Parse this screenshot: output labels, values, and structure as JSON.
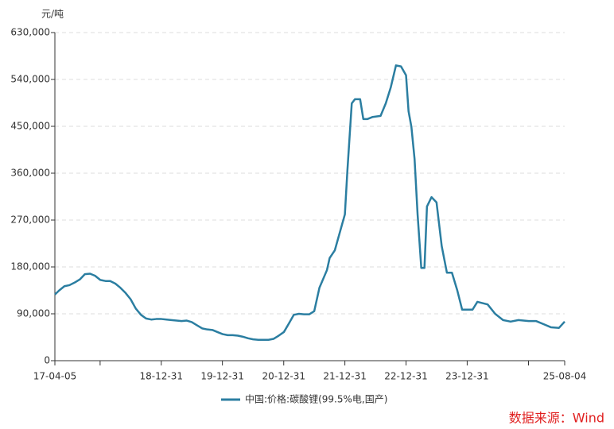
{
  "chart_data": {
    "type": "line",
    "y_unit": "元/吨",
    "source": "数据来源：Wind",
    "x": [
      "17-04-05",
      "17-05-01",
      "17-06-01",
      "17-07-01",
      "17-08-01",
      "17-09-01",
      "17-10-01",
      "17-11-01",
      "17-12-01",
      "18-01-01",
      "18-02-01",
      "18-03-01",
      "18-04-01",
      "18-05-01",
      "18-06-01",
      "18-07-01",
      "18-08-01",
      "18-09-01",
      "18-10-01",
      "18-11-01",
      "18-12-01",
      "19-01-01",
      "19-02-01",
      "19-03-01",
      "19-04-01",
      "19-05-01",
      "19-06-01",
      "19-07-01",
      "19-08-01",
      "19-09-01",
      "19-10-01",
      "19-11-01",
      "19-12-01",
      "20-01-01",
      "20-02-01",
      "20-03-01",
      "20-04-01",
      "20-05-01",
      "20-06-01",
      "20-07-01",
      "20-08-01",
      "20-09-01",
      "20-10-01",
      "20-11-01",
      "20-12-01",
      "21-01-01",
      "21-02-01",
      "21-03-01",
      "21-04-01",
      "21-05-01",
      "21-06-01",
      "21-07-01",
      "21-08-01",
      "21-09-15",
      "21-10-01",
      "21-11-01",
      "21-12-31",
      "22-01-15",
      "22-02-10",
      "22-03-01",
      "22-04-01",
      "22-04-20",
      "22-05-15",
      "22-06-15",
      "22-08-01",
      "22-09-01",
      "22-10-01",
      "22-11-01",
      "22-12-01",
      "22-12-31",
      "23-01-15",
      "23-02-01",
      "23-02-20",
      "23-03-10",
      "23-04-01",
      "23-04-20",
      "23-05-05",
      "23-06-01",
      "23-07-01",
      "23-08-01",
      "23-09-01",
      "23-10-01",
      "23-11-01",
      "23-12-01",
      "24-02-01",
      "24-03-01",
      "24-05-01",
      "24-06-15",
      "24-08-01",
      "24-09-15",
      "24-11-01",
      "25-01-01",
      "25-02-15",
      "25-04-01",
      "25-05-15",
      "25-07-01",
      "25-08-04"
    ],
    "series": [
      {
        "name": "中国:价格:碳酸锂(99.5%电,国产)",
        "color": "#2b7ea1",
        "values": [
          127000,
          135000,
          143000,
          145000,
          150000,
          156000,
          166000,
          167000,
          163000,
          155000,
          153000,
          153000,
          148000,
          140000,
          130000,
          118000,
          100000,
          88000,
          81000,
          79000,
          80000,
          80000,
          79000,
          78000,
          77000,
          76000,
          77000,
          74000,
          68000,
          62000,
          60000,
          59000,
          55000,
          51000,
          49000,
          49000,
          48000,
          46000,
          43000,
          41000,
          40000,
          40000,
          40000,
          42000,
          48000,
          55000,
          72000,
          88000,
          90000,
          89000,
          89000,
          95000,
          140000,
          174000,
          197000,
          212000,
          281000,
          365000,
          494000,
          502000,
          502000,
          464000,
          464000,
          468000,
          470000,
          494000,
          525000,
          567000,
          565000,
          548000,
          479000,
          449000,
          387000,
          281000,
          178000,
          178000,
          296000,
          314000,
          304000,
          220000,
          169000,
          169000,
          136000,
          98000,
          98000,
          113000,
          108000,
          90000,
          78000,
          75000,
          78000,
          76000,
          76000,
          70000,
          64000,
          63000,
          75000
        ]
      }
    ],
    "xlim": [
      "17-04-05",
      "25-08-04"
    ],
    "xticks": [
      {
        "value": "17-04-05",
        "label": "17-04-05"
      },
      {
        "value": "17-12-31",
        "label": null
      },
      {
        "value": "18-12-31",
        "label": "18-12-31"
      },
      {
        "value": "19-12-31",
        "label": "19-12-31"
      },
      {
        "value": "20-12-31",
        "label": "20-12-31"
      },
      {
        "value": "21-12-31",
        "label": "21-12-31"
      },
      {
        "value": "22-12-31",
        "label": "22-12-31"
      },
      {
        "value": "23-12-31",
        "label": "23-12-31"
      },
      {
        "value": "24-12-31",
        "label": null
      },
      {
        "value": "25-08-04",
        "label": "25-08-04"
      }
    ],
    "ylim": [
      0,
      630000
    ],
    "yticks": [
      0,
      {
        "value": 90000,
        "label": "90,000"
      },
      {
        "value": 180000,
        "label": "180,000"
      },
      {
        "value": 270000,
        "label": "270,000"
      },
      {
        "value": 360000,
        "label": "360,000"
      },
      {
        "value": 450000,
        "label": "450,000"
      },
      {
        "value": 540000,
        "label": "540,000"
      },
      {
        "value": 630000,
        "label": "630,000"
      }
    ],
    "grid": true
  }
}
